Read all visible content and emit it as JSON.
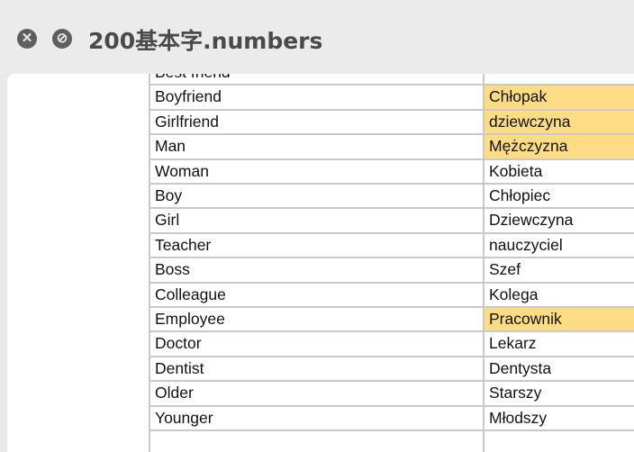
{
  "window": {
    "title": "200基本字.numbers",
    "close_icon": "close-circle-icon",
    "block_icon": "no-entry-icon"
  },
  "colors": {
    "highlight": "#fddc84",
    "grid": "#c9c9c9"
  },
  "table": {
    "rows": [
      {
        "english": "Best friend",
        "polish": "",
        "highlighted": false
      },
      {
        "english": "Boyfriend",
        "polish": "Chłopak",
        "highlighted": true
      },
      {
        "english": "Girlfriend",
        "polish": "dziewczyna",
        "highlighted": true
      },
      {
        "english": "Man",
        "polish": "Mężczyzna",
        "highlighted": true
      },
      {
        "english": "Woman",
        "polish": "Kobieta",
        "highlighted": false
      },
      {
        "english": "Boy",
        "polish": "Chłopiec",
        "highlighted": false
      },
      {
        "english": "Girl",
        "polish": "Dziewczyna",
        "highlighted": false
      },
      {
        "english": "Teacher",
        "polish": "nauczyciel",
        "highlighted": false
      },
      {
        "english": "Boss",
        "polish": "Szef",
        "highlighted": false
      },
      {
        "english": "Colleague",
        "polish": "Kolega",
        "highlighted": false
      },
      {
        "english": "Employee",
        "polish": "Pracownik",
        "highlighted": true
      },
      {
        "english": "Doctor",
        "polish": "Lekarz",
        "highlighted": false
      },
      {
        "english": "Dentist",
        "polish": "Dentysta",
        "highlighted": false
      },
      {
        "english": "Older",
        "polish": "Starszy",
        "highlighted": false
      },
      {
        "english": "Younger",
        "polish": "Młodszy",
        "highlighted": false
      },
      {
        "english": "",
        "polish": "",
        "highlighted": false
      }
    ]
  }
}
